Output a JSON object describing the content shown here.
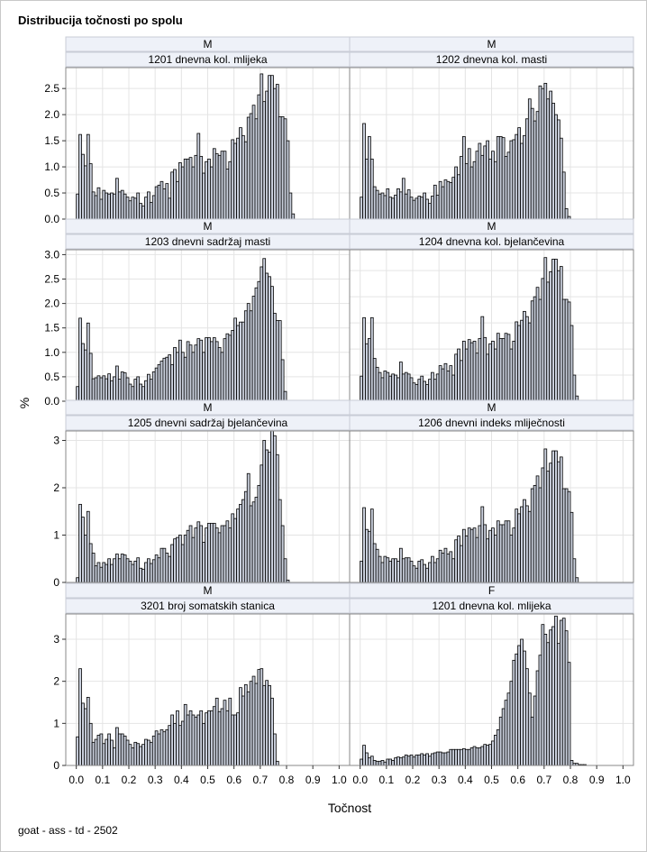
{
  "title": "Distribucija točnosti po spolu",
  "footnote": "goat - ass - td - 2502",
  "chart_data": {
    "type": "bar",
    "subtype": "histogram-panel",
    "xlabel": "Točnost",
    "ylabel": "%",
    "xlim": [
      -0.04,
      1.04
    ],
    "x_ticks": [
      "0.0",
      "0.1",
      "0.2",
      "0.3",
      "0.4",
      "0.5",
      "0.6",
      "0.7",
      "0.8",
      "0.9",
      "1.0"
    ],
    "bin_width": 0.01,
    "panels": [
      {
        "sex": "M",
        "trait": "1201 dnevna kol. mlijeka",
        "ylim": [
          0,
          2.9
        ],
        "y_ticks": [
          "0.0",
          "0.5",
          "1.0",
          "1.5",
          "2.0",
          "2.5"
        ],
        "values": [
          0.48,
          1.62,
          1.24,
          1.02,
          1.62,
          1.06,
          0.52,
          0.45,
          0.6,
          0.38,
          0.55,
          0.5,
          0.48,
          0.5,
          0.48,
          0.78,
          0.52,
          0.55,
          0.48,
          0.42,
          0.35,
          0.42,
          0.4,
          0.5,
          0.3,
          0.25,
          0.42,
          0.52,
          0.32,
          0.45,
          0.62,
          0.65,
          0.72,
          0.58,
          0.68,
          0.4,
          0.9,
          0.95,
          0.72,
          1.08,
          1.0,
          1.15,
          1.15,
          1.18,
          1.0,
          1.22,
          1.64,
          1.2,
          0.88,
          1.1,
          1.15,
          1.0,
          1.35,
          1.25,
          1.22,
          1.3,
          1.3,
          0.96,
          1.1,
          1.52,
          1.45,
          1.55,
          1.75,
          1.6,
          1.48,
          1.95,
          2.02,
          2.18,
          1.92,
          2.38,
          2.78,
          2.25,
          2.45,
          2.75,
          2.75,
          2.5,
          2.58,
          1.96,
          1.96,
          1.92,
          1.5,
          0.5,
          0.1,
          0,
          0,
          0,
          0,
          0,
          0,
          0,
          0,
          0,
          0,
          0,
          0,
          0,
          0,
          0,
          0,
          0,
          0
        ]
      },
      {
        "sex": "M",
        "trait": "1202 dnevna kol. masti",
        "ylim": [
          0,
          2.9
        ],
        "y_ticks": [
          "0.0",
          "0.5",
          "1.0",
          "1.5",
          "2.0",
          "2.5"
        ],
        "values": [
          0.42,
          1.83,
          1.15,
          1.58,
          1.15,
          0.62,
          0.55,
          0.48,
          0.5,
          0.45,
          0.58,
          0.42,
          0.4,
          0.46,
          0.58,
          0.52,
          0.78,
          0.48,
          0.56,
          0.42,
          0.36,
          0.4,
          0.44,
          0.42,
          0.5,
          0.38,
          0.3,
          0.44,
          0.65,
          0.46,
          0.72,
          0.62,
          0.75,
          0.72,
          0.7,
          0.8,
          1.0,
          0.85,
          1.2,
          1.58,
          1.06,
          1.35,
          1.0,
          1.1,
          1.3,
          1.45,
          1.22,
          1.4,
          1.5,
          1.15,
          1.3,
          1.1,
          1.58,
          1.58,
          1.56,
          1.2,
          1.28,
          1.5,
          1.52,
          1.62,
          1.75,
          1.45,
          1.6,
          1.92,
          2.3,
          2.12,
          1.88,
          2.06,
          2.55,
          2.5,
          2.6,
          2.3,
          2.45,
          2.22,
          2.0,
          1.9,
          1.55,
          0.9,
          0.2,
          0.05,
          0,
          0,
          0,
          0,
          0,
          0,
          0,
          0,
          0,
          0,
          0,
          0,
          0,
          0,
          0,
          0,
          0,
          0,
          0,
          0,
          0
        ]
      },
      {
        "sex": "M",
        "trait": "1203 dnevni sadržaj masti",
        "ylim": [
          0,
          3.1
        ],
        "y_ticks": [
          "0.0",
          "0.5",
          "1.0",
          "1.5",
          "2.0",
          "2.5",
          "3.0"
        ],
        "values": [
          0.3,
          1.7,
          1.18,
          1.05,
          1.6,
          0.98,
          0.46,
          0.48,
          0.52,
          0.48,
          0.52,
          0.46,
          0.56,
          0.42,
          0.5,
          0.72,
          0.45,
          0.6,
          0.58,
          0.48,
          0.35,
          0.3,
          0.45,
          0.5,
          0.35,
          0.3,
          0.42,
          0.55,
          0.45,
          0.6,
          0.68,
          0.75,
          0.82,
          0.88,
          0.9,
          0.95,
          0.75,
          1.1,
          1.0,
          1.25,
          1.0,
          0.9,
          1.22,
          1.15,
          1.0,
          1.15,
          1.28,
          1.25,
          1.0,
          1.3,
          1.3,
          1.22,
          1.3,
          1.22,
          1.1,
          1.0,
          1.28,
          1.38,
          1.35,
          1.45,
          1.7,
          1.55,
          1.62,
          1.62,
          1.85,
          2.0,
          1.85,
          2.15,
          2.32,
          2.45,
          2.75,
          2.92,
          2.62,
          2.55,
          2.35,
          1.8,
          1.65,
          1.65,
          0.85,
          0.2,
          0,
          0,
          0,
          0,
          0,
          0,
          0,
          0,
          0,
          0,
          0,
          0,
          0,
          0,
          0,
          0,
          0,
          0,
          0,
          0,
          0
        ]
      },
      {
        "sex": "M",
        "trait": "1204 dnevna kol. bjelančevina",
        "ylim": [
          0,
          2.9
        ],
        "y_ticks": [
          "0.0",
          "0.5",
          "1.0",
          "1.5",
          "2.0",
          "2.5"
        ],
        "values": [
          0.48,
          1.6,
          1.1,
          1.2,
          1.6,
          0.82,
          0.65,
          0.55,
          0.45,
          0.58,
          0.55,
          0.48,
          0.52,
          0.5,
          0.45,
          0.75,
          0.52,
          0.55,
          0.52,
          0.45,
          0.35,
          0.32,
          0.42,
          0.48,
          0.38,
          0.32,
          0.42,
          0.55,
          0.42,
          0.52,
          0.68,
          0.62,
          0.72,
          0.58,
          0.68,
          0.5,
          0.9,
          1.0,
          0.78,
          1.15,
          1.0,
          1.18,
          1.12,
          1.15,
          0.92,
          1.2,
          1.62,
          1.22,
          0.9,
          1.1,
          1.15,
          1.0,
          1.3,
          1.2,
          1.2,
          1.3,
          1.28,
          1.0,
          1.15,
          1.52,
          1.45,
          1.55,
          1.72,
          1.62,
          1.5,
          1.92,
          2.0,
          2.18,
          1.95,
          2.35,
          2.75,
          2.28,
          2.48,
          2.72,
          2.72,
          2.5,
          2.58,
          1.95,
          1.95,
          1.9,
          1.45,
          0.5,
          0.1,
          0,
          0,
          0,
          0,
          0,
          0,
          0,
          0,
          0,
          0,
          0,
          0,
          0,
          0,
          0,
          0,
          0,
          0
        ]
      },
      {
        "sex": "M",
        "trait": "1205 dnevni sadržaj bjelančevina",
        "ylim": [
          0,
          3.2
        ],
        "y_ticks": [
          "0",
          "1",
          "2",
          "3"
        ],
        "values": [
          0.1,
          1.65,
          1.38,
          1.0,
          1.5,
          0.82,
          0.62,
          0.35,
          0.42,
          0.32,
          0.42,
          0.38,
          0.5,
          0.38,
          0.5,
          0.6,
          0.5,
          0.6,
          0.58,
          0.5,
          0.45,
          0.38,
          0.45,
          0.52,
          0.3,
          0.28,
          0.42,
          0.5,
          0.4,
          0.48,
          0.58,
          0.52,
          0.72,
          0.72,
          0.62,
          0.55,
          0.8,
          0.92,
          0.95,
          1.0,
          0.8,
          1.0,
          1.1,
          1.2,
          0.95,
          1.15,
          1.28,
          1.2,
          0.85,
          1.15,
          1.25,
          1.25,
          1.25,
          1.15,
          1.05,
          1.2,
          1.2,
          1.3,
          1.15,
          1.45,
          1.35,
          1.55,
          1.65,
          1.75,
          1.92,
          2.3,
          1.62,
          1.7,
          1.8,
          2.05,
          2.48,
          3.0,
          2.8,
          2.75,
          3.2,
          3.1,
          2.7,
          1.75,
          1.2,
          0.5,
          0.05,
          0,
          0,
          0,
          0,
          0,
          0,
          0,
          0,
          0,
          0,
          0,
          0,
          0,
          0,
          0,
          0,
          0,
          0,
          0,
          0
        ]
      },
      {
        "sex": "M",
        "trait": "1206 dnevni indeks mliječnosti",
        "ylim": [
          0,
          3.2
        ],
        "y_ticks": [
          "0",
          "1",
          "2",
          "3"
        ],
        "values": [
          0.45,
          1.58,
          1.12,
          1.08,
          1.55,
          0.82,
          0.7,
          0.55,
          0.42,
          0.55,
          0.52,
          0.45,
          0.5,
          0.5,
          0.45,
          0.72,
          0.5,
          0.52,
          0.52,
          0.45,
          0.35,
          0.3,
          0.45,
          0.48,
          0.38,
          0.3,
          0.42,
          0.55,
          0.42,
          0.5,
          0.68,
          0.62,
          0.72,
          0.6,
          0.65,
          0.5,
          0.9,
          0.98,
          0.78,
          1.12,
          0.98,
          1.15,
          1.12,
          1.15,
          0.95,
          1.2,
          1.6,
          1.22,
          0.92,
          1.1,
          1.15,
          1.0,
          1.3,
          1.22,
          1.22,
          1.3,
          1.3,
          1.0,
          1.15,
          1.55,
          1.45,
          1.6,
          1.75,
          1.62,
          1.5,
          1.98,
          2.05,
          2.25,
          2.0,
          2.42,
          2.82,
          2.35,
          2.52,
          2.78,
          2.78,
          2.55,
          2.65,
          1.98,
          1.98,
          1.92,
          1.48,
          0.5,
          0.1,
          0,
          0,
          0,
          0,
          0,
          0,
          0,
          0,
          0,
          0,
          0,
          0,
          0,
          0,
          0,
          0,
          0,
          0
        ]
      },
      {
        "sex": "M",
        "trait": "3201 broj somatskih stanica",
        "ylim": [
          0,
          3.6
        ],
        "y_ticks": [
          "0",
          "1",
          "2",
          "3"
        ],
        "values": [
          0.68,
          2.3,
          1.48,
          1.35,
          1.62,
          1.0,
          0.55,
          0.62,
          0.72,
          0.75,
          0.52,
          0.62,
          0.75,
          0.6,
          0.42,
          0.9,
          0.75,
          0.75,
          0.7,
          0.6,
          0.5,
          0.42,
          0.55,
          0.52,
          0.45,
          0.5,
          0.62,
          0.6,
          0.55,
          0.7,
          0.82,
          0.75,
          0.85,
          0.8,
          0.85,
          0.95,
          1.2,
          1.0,
          1.3,
          0.95,
          1.05,
          1.45,
          1.2,
          1.3,
          1.2,
          1.15,
          1.2,
          1.3,
          1.0,
          1.25,
          1.3,
          1.3,
          1.4,
          1.6,
          1.28,
          1.35,
          1.55,
          1.3,
          1.6,
          1.2,
          1.2,
          1.25,
          1.85,
          1.65,
          1.92,
          1.75,
          2.0,
          2.12,
          1.95,
          2.28,
          2.3,
          1.9,
          2.02,
          1.9,
          1.6,
          0.75,
          0.1,
          0,
          0,
          0,
          0,
          0,
          0,
          0,
          0,
          0,
          0,
          0,
          0,
          0,
          0,
          0,
          0,
          0,
          0,
          0,
          0,
          0,
          0,
          0,
          0
        ]
      },
      {
        "sex": "F",
        "trait": "1201 dnevna kol. mlijeka",
        "ylim": [
          0,
          3.6
        ],
        "y_ticks": [
          "0",
          "1",
          "2",
          "3"
        ],
        "values": [
          0.15,
          0.48,
          0.3,
          0.18,
          0.22,
          0.12,
          0.1,
          0.1,
          0.12,
          0.08,
          0.15,
          0.15,
          0.12,
          0.18,
          0.2,
          0.18,
          0.2,
          0.25,
          0.22,
          0.25,
          0.2,
          0.25,
          0.25,
          0.28,
          0.25,
          0.28,
          0.22,
          0.28,
          0.3,
          0.32,
          0.32,
          0.3,
          0.3,
          0.32,
          0.38,
          0.38,
          0.38,
          0.38,
          0.38,
          0.4,
          0.38,
          0.38,
          0.42,
          0.45,
          0.42,
          0.42,
          0.45,
          0.5,
          0.48,
          0.5,
          0.58,
          0.72,
          0.85,
          1.15,
          1.35,
          1.55,
          1.72,
          2.0,
          2.5,
          2.65,
          2.85,
          3.0,
          2.72,
          2.3,
          1.72,
          1.15,
          1.65,
          2.25,
          2.62,
          3.35,
          3.12,
          2.92,
          3.22,
          3.3,
          3.55,
          2.9,
          3.45,
          3.5,
          3.2,
          2.45,
          0.12,
          0.05,
          0.05,
          0.02,
          0.02,
          0.02,
          0,
          0,
          0,
          0,
          0,
          0,
          0,
          0,
          0,
          0,
          0,
          0,
          0,
          0,
          0
        ]
      }
    ]
  }
}
